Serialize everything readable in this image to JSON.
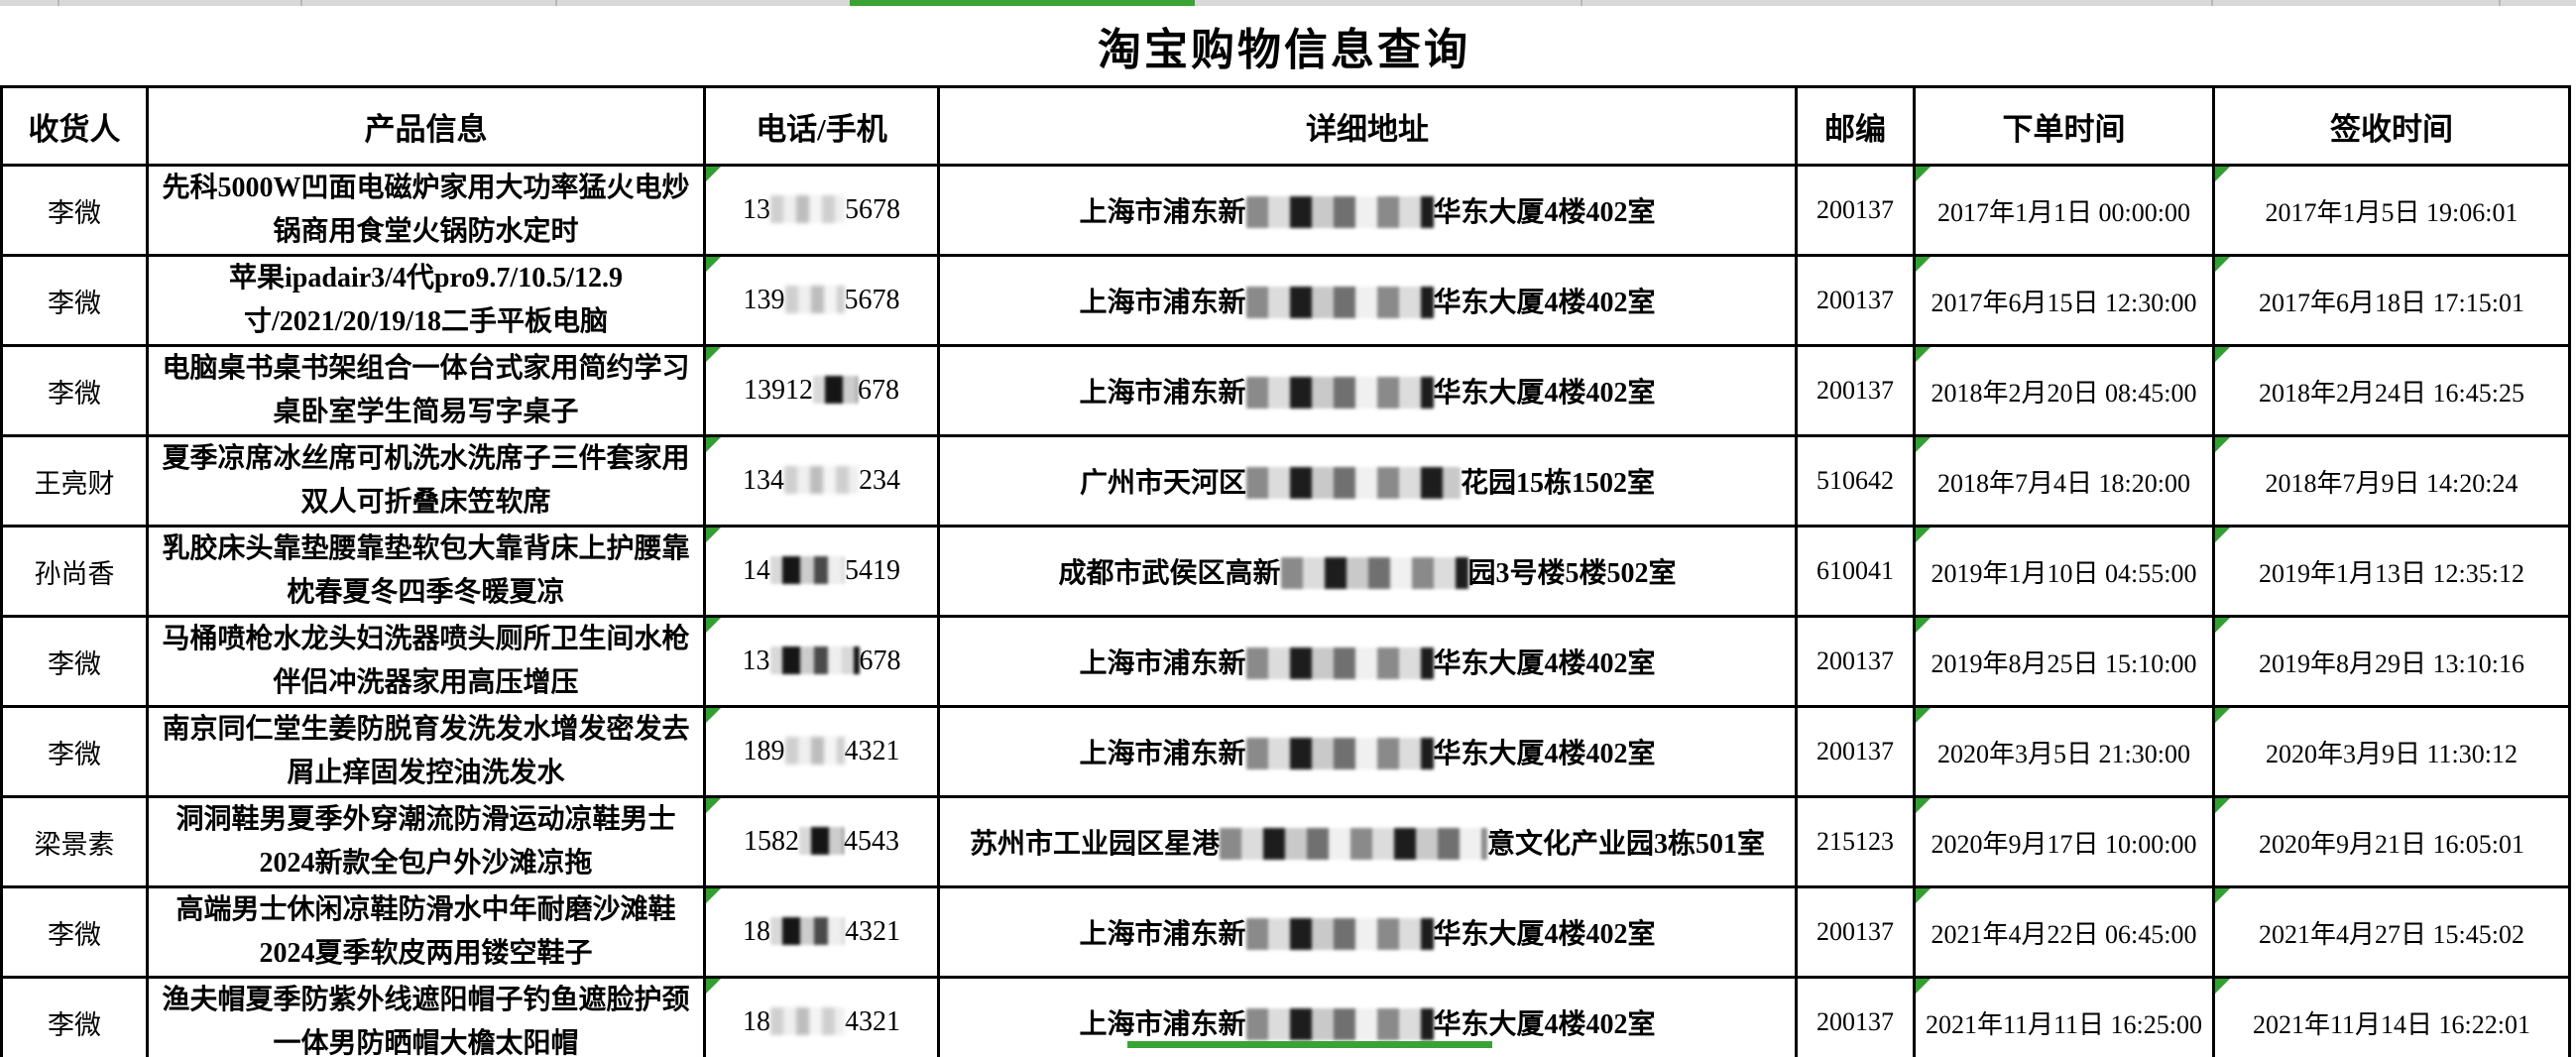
{
  "title": "淘宝购物信息查询",
  "colors": {
    "accent_green": "#3aa335",
    "strip_gray": "#d8d8d8",
    "border_black": "#000000"
  },
  "table": {
    "headers": [
      "收货人",
      "产品信息",
      "电话/手机",
      "详细地址",
      "邮编",
      "下单时间",
      "签收时间"
    ],
    "rows": [
      {
        "recipient": "李微",
        "product": "先科5000W凹面电磁炉家用大功率猛火电炒锅商用食堂火锅防水定时",
        "phone_prefix": "13",
        "phone_mask": 5,
        "phone_mask_style": "light",
        "phone_suffix": "5678",
        "addr_prefix": "上海市浦东新",
        "addr_mask": 7,
        "addr_suffix": "华东大厦4楼402室",
        "zip": "200137",
        "order_time": "2017年1月1日 00:00:00",
        "sign_time": "2017年1月5日 19:06:01"
      },
      {
        "recipient": "李微",
        "product": "苹果ipadair3/4代pro9.7/10.5/12.9寸/2021/20/19/18二手平板电脑",
        "phone_prefix": "139",
        "phone_mask": 4,
        "phone_mask_style": "light",
        "phone_suffix": "5678",
        "addr_prefix": "上海市浦东新",
        "addr_mask": 7,
        "addr_suffix": "华东大厦4楼402室",
        "zip": "200137",
        "order_time": "2017年6月15日 12:30:00",
        "sign_time": "2017年6月18日 17:15:01"
      },
      {
        "recipient": "李微",
        "product": "电脑桌书桌书架组合一体台式家用简约学习桌卧室学生简易写字桌子",
        "phone_prefix": "13912",
        "phone_mask": 3,
        "phone_mask_style": "dark",
        "phone_suffix": "678",
        "addr_prefix": "上海市浦东新",
        "addr_mask": 7,
        "addr_suffix": "华东大厦4楼402室",
        "zip": "200137",
        "order_time": "2018年2月20日 08:45:00",
        "sign_time": "2018年2月24日 16:45:25"
      },
      {
        "recipient": "王亮财",
        "product": "夏季凉席冰丝席可机洗水洗席子三件套家用双人可折叠床笠软席",
        "phone_prefix": "134",
        "phone_mask": 5,
        "phone_mask_style": "light",
        "phone_suffix": "234",
        "addr_prefix": "广州市天河区",
        "addr_mask": 8,
        "addr_suffix": "花园15栋1502室",
        "zip": "510642",
        "order_time": "2018年7月4日 18:20:00",
        "sign_time": "2018年7月9日 14:20:24"
      },
      {
        "recipient": "孙尚香",
        "product": "乳胶床头靠垫腰靠垫软包大靠背床上护腰靠枕春夏冬四季冬暖夏凉",
        "phone_prefix": "14",
        "phone_mask": 5,
        "phone_mask_style": "dark",
        "phone_suffix": "5419",
        "addr_prefix": "成都市武侯区高新",
        "addr_mask": 7,
        "addr_suffix": "园3号楼5楼502室",
        "zip": "610041",
        "order_time": "2019年1月10日 04:55:00",
        "sign_time": "2019年1月13日 12:35:12"
      },
      {
        "recipient": "李微",
        "product": "马桶喷枪水龙头妇洗器喷头厕所卫生间水枪伴侣冲洗器家用高压增压",
        "phone_prefix": "13",
        "phone_mask": 6,
        "phone_mask_style": "dark",
        "phone_suffix": "678",
        "addr_prefix": "上海市浦东新",
        "addr_mask": 7,
        "addr_suffix": "华东大厦4楼402室",
        "zip": "200137",
        "order_time": "2019年8月25日 15:10:00",
        "sign_time": "2019年8月29日 13:10:16"
      },
      {
        "recipient": "李微",
        "product": "南京同仁堂生姜防脱育发洗发水增发密发去屑止痒固发控油洗发水",
        "phone_prefix": "189",
        "phone_mask": 4,
        "phone_mask_style": "light",
        "phone_suffix": "4321",
        "addr_prefix": "上海市浦东新",
        "addr_mask": 7,
        "addr_suffix": "华东大厦4楼402室",
        "zip": "200137",
        "order_time": "2020年3月5日 21:30:00",
        "sign_time": "2020年3月9日 11:30:12"
      },
      {
        "recipient": "梁景素",
        "product": "洞洞鞋男夏季外穿潮流防滑运动凉鞋男士2024新款全包户外沙滩凉拖",
        "phone_prefix": "1582",
        "phone_mask": 3,
        "phone_mask_style": "dark",
        "phone_suffix": "4543",
        "addr_prefix": "苏州市工业园区星港",
        "addr_mask": 10,
        "addr_suffix": "意文化产业园3栋501室",
        "zip": "215123",
        "order_time": "2020年9月17日 10:00:00",
        "sign_time": "2020年9月21日 16:05:01"
      },
      {
        "recipient": "李微",
        "product": "高端男士休闲凉鞋防滑水中年耐磨沙滩鞋2024夏季软皮两用镂空鞋子",
        "phone_prefix": "18",
        "phone_mask": 5,
        "phone_mask_style": "dark",
        "phone_suffix": "4321",
        "addr_prefix": "上海市浦东新",
        "addr_mask": 7,
        "addr_suffix": "华东大厦4楼402室",
        "zip": "200137",
        "order_time": "2021年4月22日 06:45:00",
        "sign_time": "2021年4月27日 15:45:02"
      },
      {
        "recipient": "李微",
        "product": "渔夫帽夏季防紫外线遮阳帽子钓鱼遮脸护颈一体男防晒帽大檐太阳帽",
        "phone_prefix": "18",
        "phone_mask": 5,
        "phone_mask_style": "light",
        "phone_suffix": "4321",
        "addr_prefix": "上海市浦东新",
        "addr_mask": 7,
        "addr_suffix": "华东大厦4楼402室",
        "zip": "200137",
        "order_time": "2021年11月11日 16:25:00",
        "sign_time": "2021年11月14日 16:22:01"
      }
    ]
  }
}
